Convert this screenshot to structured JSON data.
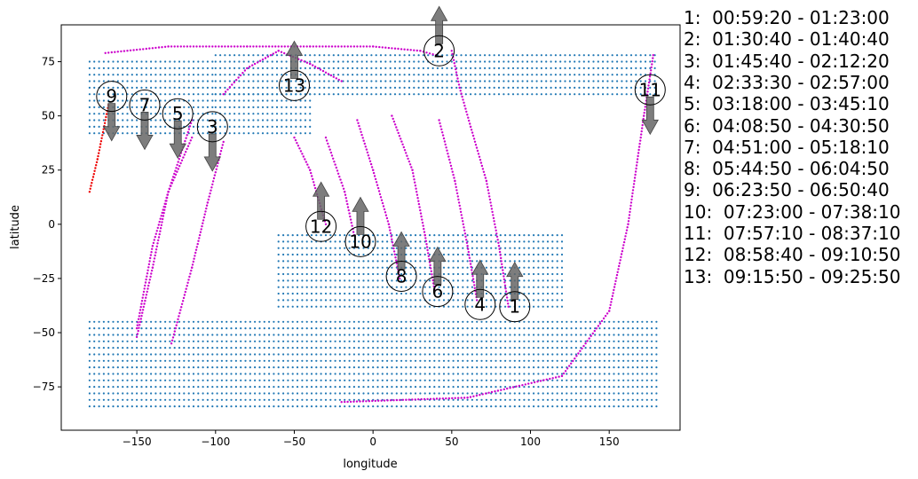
{
  "chart_data": {
    "type": "scatter",
    "xlabel": "longitude",
    "ylabel": "latitude",
    "xlim": [
      -198,
      195
    ],
    "ylim": [
      -95,
      92
    ],
    "xticks": [
      -150,
      -100,
      -50,
      0,
      50,
      100,
      150
    ],
    "yticks": [
      -75,
      -50,
      -25,
      0,
      25,
      50,
      75
    ],
    "grid": false,
    "colors": {
      "land": "#1f77b4",
      "track": "#cc00cc",
      "track_alt": "#ee0000",
      "arrow": "#666666"
    },
    "land_regions": [
      {
        "lat": [
          75,
          40
        ],
        "lon": [
          -180,
          -100
        ]
      },
      {
        "lat": [
          78,
          60
        ],
        "lon": [
          -100,
          180
        ]
      },
      {
        "lat": [
          60,
          40
        ],
        "lon": [
          -100,
          -40
        ]
      },
      {
        "lat": [
          -5,
          -40
        ],
        "lon": [
          -60,
          120
        ]
      },
      {
        "lat": [
          -45,
          -85
        ],
        "lon": [
          -180,
          180
        ]
      }
    ],
    "tracks": [
      {
        "id": "1",
        "color": "#cc00cc",
        "points": [
          [
            86,
            -38
          ],
          [
            80,
            -10
          ],
          [
            72,
            20
          ],
          [
            62,
            45
          ],
          [
            55,
            63
          ],
          [
            50,
            80
          ]
        ]
      },
      {
        "id": "2",
        "color": "#cc00cc",
        "points": [
          [
            -170,
            79
          ],
          [
            -130,
            82
          ],
          [
            -80,
            82
          ],
          [
            -40,
            82
          ],
          [
            0,
            82
          ],
          [
            30,
            80
          ],
          [
            40,
            78
          ]
        ]
      },
      {
        "id": "3",
        "color": "#cc00cc",
        "points": [
          [
            -150,
            -48
          ],
          [
            -140,
            -10
          ],
          [
            -130,
            15
          ],
          [
            -115,
            40
          ]
        ]
      },
      {
        "id": "4",
        "color": "#cc00cc",
        "points": [
          [
            66,
            -35
          ],
          [
            60,
            -10
          ],
          [
            52,
            20
          ],
          [
            42,
            48
          ]
        ]
      },
      {
        "id": "5",
        "color": "#cc00cc",
        "points": [
          [
            -128,
            -55
          ],
          [
            -115,
            -20
          ],
          [
            -105,
            10
          ],
          [
            -95,
            38
          ]
        ]
      },
      {
        "id": "6",
        "color": "#cc00cc",
        "points": [
          [
            39,
            -30
          ],
          [
            33,
            -5
          ],
          [
            25,
            25
          ],
          [
            12,
            50
          ]
        ]
      },
      {
        "id": "7",
        "color": "#cc00cc",
        "points": [
          [
            -150,
            -52
          ],
          [
            -140,
            -20
          ],
          [
            -130,
            15
          ],
          [
            -115,
            48
          ]
        ]
      },
      {
        "id": "8",
        "color": "#cc00cc",
        "points": [
          [
            17,
            -25
          ],
          [
            10,
            0
          ],
          [
            0,
            25
          ],
          [
            -10,
            48
          ]
        ]
      },
      {
        "id": "9",
        "color": "#ee0000",
        "points": [
          [
            -180,
            15
          ],
          [
            -175,
            30
          ],
          [
            -168,
            55
          ]
        ]
      },
      {
        "id": "10",
        "color": "#cc00cc",
        "points": [
          [
            -12,
            -5
          ],
          [
            -18,
            15
          ],
          [
            -30,
            40
          ]
        ]
      },
      {
        "id": "11",
        "color": "#cc00cc",
        "points": [
          [
            -20,
            -82
          ],
          [
            60,
            -80
          ],
          [
            120,
            -70
          ],
          [
            150,
            -40
          ],
          [
            162,
            0
          ],
          [
            172,
            50
          ],
          [
            178,
            78
          ]
        ]
      },
      {
        "id": "12",
        "color": "#cc00cc",
        "points": [
          [
            -30,
            0
          ],
          [
            -40,
            25
          ],
          [
            -50,
            40
          ]
        ]
      },
      {
        "id": "13",
        "color": "#cc00cc",
        "points": [
          [
            -95,
            60
          ],
          [
            -80,
            72
          ],
          [
            -60,
            80
          ],
          [
            -40,
            74
          ],
          [
            -20,
            66
          ]
        ]
      }
    ],
    "markers": [
      {
        "label": "1",
        "lon": 90,
        "lat": -38,
        "arrow": "up"
      },
      {
        "label": "2",
        "lon": 42,
        "lat": 80,
        "arrow": "up"
      },
      {
        "label": "3",
        "lon": -102,
        "lat": 45,
        "arrow": "down"
      },
      {
        "label": "4",
        "lon": 68,
        "lat": -37,
        "arrow": "up"
      },
      {
        "label": "5",
        "lon": -124,
        "lat": 51,
        "arrow": "down"
      },
      {
        "label": "6",
        "lon": 41,
        "lat": -31,
        "arrow": "up"
      },
      {
        "label": "7",
        "lon": -145,
        "lat": 55,
        "arrow": "down"
      },
      {
        "label": "8",
        "lon": 18,
        "lat": -24,
        "arrow": "up"
      },
      {
        "label": "9",
        "lon": -166,
        "lat": 59,
        "arrow": "down"
      },
      {
        "label": "10",
        "lon": -8,
        "lat": -8,
        "arrow": "up"
      },
      {
        "label": "11",
        "lon": 176,
        "lat": 62,
        "arrow": "down"
      },
      {
        "label": "12",
        "lon": -33,
        "lat": -1,
        "arrow": "up"
      },
      {
        "label": "13",
        "lon": -50,
        "lat": 64,
        "arrow": "up"
      }
    ],
    "legend": [
      "1:  00:59:20 - 01:23:00",
      "2:  01:30:40 - 01:40:40",
      "3:  01:45:40 - 02:12:20",
      "4:  02:33:30 - 02:57:00",
      "5:  03:18:00 - 03:45:10",
      "6:  04:08:50 - 04:30:50",
      "7:  04:51:00 - 05:18:10",
      "8:  05:44:50 - 06:04:50",
      "9:  06:23:50 - 06:50:40",
      "10:  07:23:00 - 07:38:10",
      "11:  07:57:10 - 08:37:10",
      "12:  08:58:40 - 09:10:50",
      "13:  09:15:50 - 09:25:50"
    ]
  }
}
